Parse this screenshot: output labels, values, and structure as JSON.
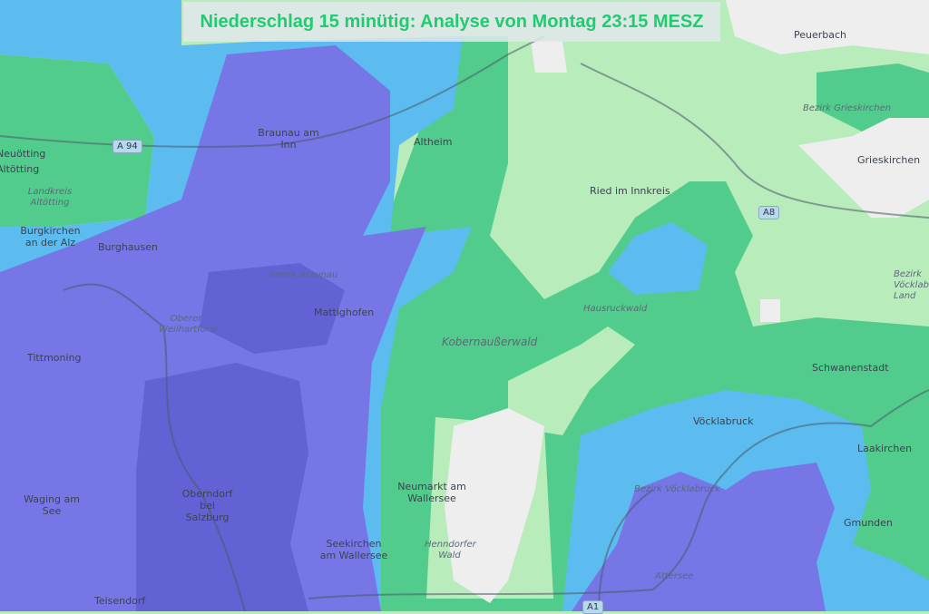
{
  "title": "Niederschlag 15 minütig: Analyse von Montag 23:15 MESZ",
  "colors": {
    "light_green": "#b9ecbb",
    "green": "#52cc8c",
    "blue": "#5cbcf0",
    "purple": "#7676e6",
    "dark_purple": "#6262d4",
    "no_precip": "#eeeeee",
    "title_text": "#1fcc6f"
  },
  "places": [
    "Peuerbach",
    "Braunau am Inn",
    "Altheim",
    "Ried im Innkreis",
    "Grieskirchen",
    "Neuötting",
    "Altötting",
    "Burgkirchen an der Alz",
    "Burghausen",
    "Mattighofen",
    "Tittmoning",
    "Schwanenstadt",
    "Vöcklabruck",
    "Laakirchen",
    "Neumarkt am Wallersee",
    "Oberndorf bei Salzburg",
    "Waging am See",
    "Seekirchen am Wallersee",
    "Gmunden",
    "Teisendorf"
  ],
  "regions": [
    "Bezirk Grieskirchen",
    "Landkreis Altötting",
    "Bezirk Braunau",
    "Oberer Weilhartforst",
    "Hausruckwald",
    "Kobernaußerwald",
    "Bezirk Vöcklabruck",
    "Henndorfer Wald",
    "Attersee",
    "Bezirk Vöcklabruck Land"
  ],
  "roads": [
    "A 94",
    "A8",
    "A1"
  ]
}
